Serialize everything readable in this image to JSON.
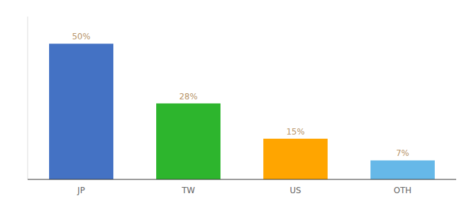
{
  "chart_data": {
    "type": "bar",
    "categories": [
      "JP",
      "TW",
      "US",
      "OTH"
    ],
    "values": [
      50,
      28,
      15,
      7
    ],
    "value_labels": [
      "50%",
      "28%",
      "15%",
      "7%"
    ],
    "colors": [
      "#4472c4",
      "#2db52d",
      "#ffa500",
      "#66b8e8"
    ],
    "ylim": [
      0,
      60
    ],
    "grid": false,
    "data_labels": true,
    "tick_labels": "x"
  }
}
